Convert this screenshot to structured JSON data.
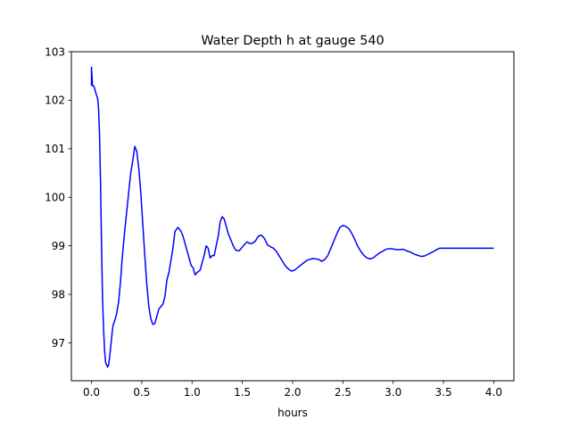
{
  "chart_data": {
    "type": "line",
    "title": "Water Depth h at gauge 540",
    "xlabel": "hours",
    "ylabel": "",
    "xlim": [
      -0.2,
      4.2
    ],
    "ylim": [
      96.22,
      103.0
    ],
    "xticks": [
      0.0,
      0.5,
      1.0,
      1.5,
      2.0,
      2.5,
      3.0,
      3.5,
      4.0
    ],
    "xtick_labels": [
      "0.0",
      "0.5",
      "1.0",
      "1.5",
      "2.0",
      "2.5",
      "3.0",
      "3.5",
      "4.0"
    ],
    "yticks": [
      97,
      98,
      99,
      100,
      101,
      102,
      103
    ],
    "ytick_labels": [
      "97",
      "98",
      "99",
      "100",
      "101",
      "102",
      "103"
    ],
    "grid": false,
    "legend": "none",
    "series": [
      {
        "color": "#0000ff",
        "x": [
          0.0,
          0.0,
          0.01,
          0.02,
          0.03,
          0.05,
          0.06,
          0.07,
          0.08,
          0.09,
          0.1,
          0.11,
          0.12,
          0.13,
          0.14,
          0.15,
          0.16,
          0.17,
          0.18,
          0.19,
          0.2,
          0.21,
          0.22,
          0.23,
          0.25,
          0.27,
          0.29,
          0.3,
          0.31,
          0.33,
          0.35,
          0.37,
          0.39,
          0.41,
          0.43,
          0.45,
          0.47,
          0.49,
          0.51,
          0.53,
          0.55,
          0.57,
          0.59,
          0.61,
          0.63,
          0.65,
          0.67,
          0.69,
          0.71,
          0.73,
          0.75,
          0.77,
          0.79,
          0.81,
          0.83,
          0.86,
          0.89,
          0.91,
          0.93,
          0.95,
          0.97,
          0.99,
          1.01,
          1.03,
          1.05,
          1.08,
          1.1,
          1.12,
          1.14,
          1.16,
          1.18,
          1.2,
          1.22,
          1.24,
          1.26,
          1.28,
          1.3,
          1.32,
          1.34,
          1.36,
          1.38,
          1.41,
          1.43,
          1.45,
          1.47,
          1.49,
          1.51,
          1.53,
          1.55,
          1.57,
          1.6,
          1.63,
          1.66,
          1.69,
          1.72,
          1.75,
          1.78,
          1.81,
          1.84,
          1.87,
          1.9,
          1.93,
          1.96,
          1.99,
          2.02,
          2.05,
          2.08,
          2.11,
          2.14,
          2.17,
          2.2,
          2.23,
          2.26,
          2.29,
          2.32,
          2.35,
          2.38,
          2.41,
          2.44,
          2.47,
          2.5,
          2.53,
          2.56,
          2.59,
          2.62,
          2.65,
          2.68,
          2.71,
          2.74,
          2.77,
          2.8,
          2.83,
          2.86,
          2.89,
          2.92,
          2.95,
          2.98,
          3.01,
          3.04,
          3.07,
          3.1,
          3.13,
          3.16,
          3.19,
          3.22,
          3.25,
          3.28,
          3.31,
          3.34,
          3.37,
          3.4,
          3.43,
          3.46,
          3.49,
          3.52,
          3.55,
          3.58,
          3.61,
          3.64,
          3.67,
          3.7,
          3.73,
          3.76,
          3.79,
          3.82,
          3.85,
          3.88,
          3.91,
          3.94,
          3.97,
          4.0
        ],
        "y": [
          102.3,
          102.68,
          102.3,
          102.3,
          102.25,
          102.1,
          102.05,
          101.85,
          101.3,
          100.3,
          99.0,
          97.9,
          97.3,
          96.85,
          96.6,
          96.55,
          96.5,
          96.55,
          96.7,
          96.9,
          97.1,
          97.3,
          97.4,
          97.45,
          97.6,
          97.85,
          98.3,
          98.6,
          98.85,
          99.3,
          99.7,
          100.1,
          100.5,
          100.75,
          101.05,
          100.95,
          100.6,
          100.1,
          99.45,
          98.8,
          98.2,
          97.75,
          97.5,
          97.38,
          97.4,
          97.55,
          97.7,
          97.75,
          97.8,
          97.95,
          98.3,
          98.45,
          98.7,
          98.95,
          99.3,
          99.38,
          99.3,
          99.2,
          99.05,
          98.9,
          98.75,
          98.6,
          98.55,
          98.4,
          98.45,
          98.5,
          98.65,
          98.8,
          99.0,
          98.95,
          98.75,
          98.8,
          98.8,
          99.0,
          99.2,
          99.5,
          99.6,
          99.55,
          99.4,
          99.25,
          99.15,
          99.0,
          98.92,
          98.9,
          98.9,
          98.95,
          99.0,
          99.05,
          99.08,
          99.05,
          99.05,
          99.1,
          99.2,
          99.22,
          99.15,
          99.02,
          98.98,
          98.95,
          98.88,
          98.78,
          98.68,
          98.58,
          98.52,
          98.48,
          98.5,
          98.55,
          98.6,
          98.65,
          98.7,
          98.72,
          98.74,
          98.73,
          98.72,
          98.68,
          98.72,
          98.8,
          98.95,
          99.1,
          99.25,
          99.38,
          99.42,
          99.4,
          99.35,
          99.25,
          99.12,
          98.98,
          98.88,
          98.8,
          98.75,
          98.73,
          98.75,
          98.8,
          98.85,
          98.88,
          98.92,
          98.94,
          98.94,
          98.93,
          98.92,
          98.92,
          98.93,
          98.9,
          98.88,
          98.85,
          98.82,
          98.8,
          98.78,
          98.79,
          98.82,
          98.85,
          98.88,
          98.92,
          98.95,
          98.95,
          98.95,
          98.95,
          98.95,
          98.95,
          98.95,
          98.95,
          98.95,
          98.95,
          98.95,
          98.95,
          98.95,
          98.95,
          98.95,
          98.95,
          98.95,
          98.95,
          98.95
        ]
      }
    ]
  }
}
